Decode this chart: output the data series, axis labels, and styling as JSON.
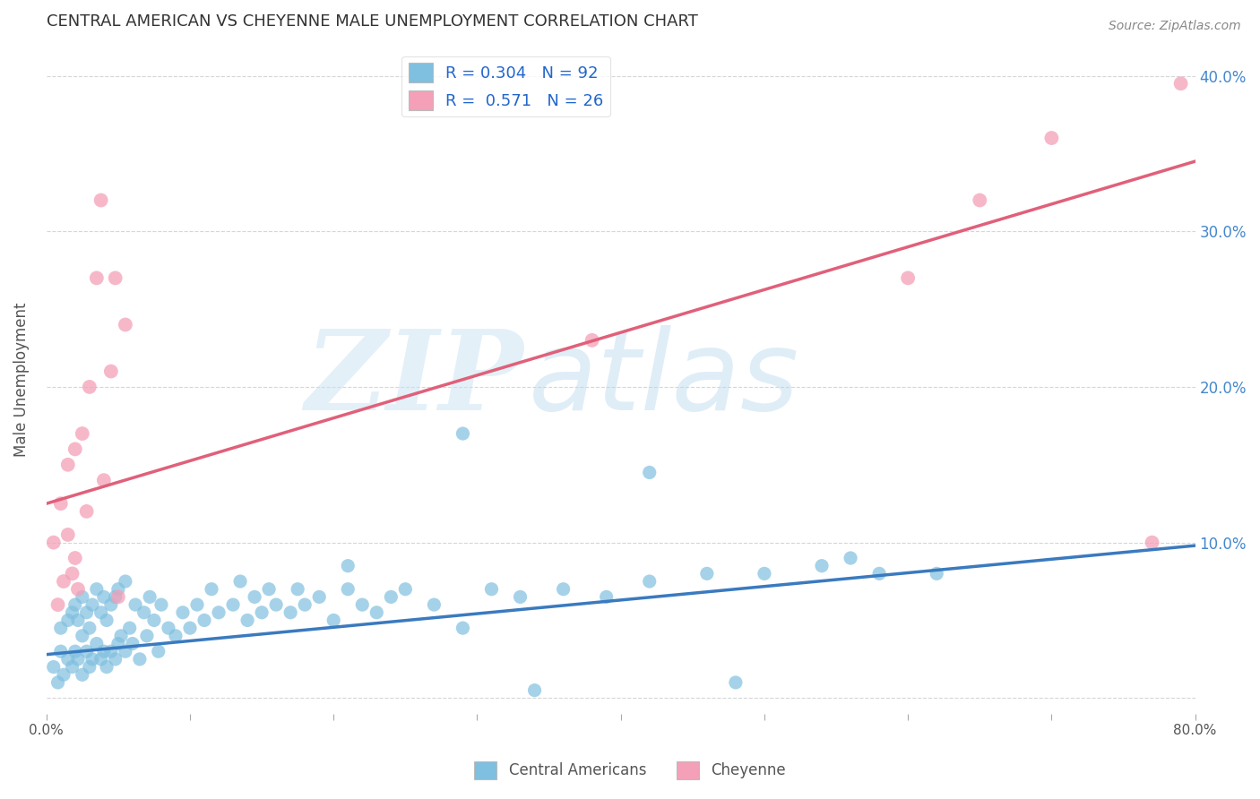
{
  "title": "CENTRAL AMERICAN VS CHEYENNE MALE UNEMPLOYMENT CORRELATION CHART",
  "source": "Source: ZipAtlas.com",
  "ylabel": "Male Unemployment",
  "xlim": [
    0,
    0.8
  ],
  "ylim": [
    -0.01,
    0.42
  ],
  "yticks": [
    0.0,
    0.1,
    0.2,
    0.3,
    0.4
  ],
  "xticks": [
    0.0,
    0.1,
    0.2,
    0.3,
    0.4,
    0.5,
    0.6,
    0.7,
    0.8
  ],
  "blue_R": 0.304,
  "blue_N": 92,
  "pink_R": 0.571,
  "pink_N": 26,
  "blue_color": "#7fbfdf",
  "pink_color": "#f4a0b8",
  "blue_line_color": "#3a7abf",
  "pink_line_color": "#e0607a",
  "watermark_zip": "ZIP",
  "watermark_atlas": "atlas",
  "legend_label_blue": "Central Americans",
  "legend_label_pink": "Cheyenne",
  "blue_scatter_x": [
    0.005,
    0.008,
    0.01,
    0.01,
    0.012,
    0.015,
    0.015,
    0.018,
    0.018,
    0.02,
    0.02,
    0.022,
    0.022,
    0.025,
    0.025,
    0.025,
    0.028,
    0.028,
    0.03,
    0.03,
    0.032,
    0.032,
    0.035,
    0.035,
    0.038,
    0.038,
    0.04,
    0.04,
    0.042,
    0.042,
    0.045,
    0.045,
    0.048,
    0.048,
    0.05,
    0.05,
    0.052,
    0.055,
    0.055,
    0.058,
    0.06,
    0.062,
    0.065,
    0.068,
    0.07,
    0.072,
    0.075,
    0.078,
    0.08,
    0.085,
    0.09,
    0.095,
    0.1,
    0.105,
    0.11,
    0.115,
    0.12,
    0.13,
    0.135,
    0.14,
    0.145,
    0.15,
    0.155,
    0.16,
    0.17,
    0.175,
    0.18,
    0.19,
    0.2,
    0.21,
    0.22,
    0.23,
    0.24,
    0.25,
    0.27,
    0.29,
    0.31,
    0.33,
    0.36,
    0.39,
    0.42,
    0.46,
    0.5,
    0.54,
    0.58,
    0.29,
    0.42,
    0.21,
    0.34,
    0.48,
    0.56,
    0.62
  ],
  "blue_scatter_y": [
    0.02,
    0.01,
    0.03,
    0.045,
    0.015,
    0.025,
    0.05,
    0.02,
    0.055,
    0.03,
    0.06,
    0.025,
    0.05,
    0.015,
    0.04,
    0.065,
    0.03,
    0.055,
    0.02,
    0.045,
    0.025,
    0.06,
    0.035,
    0.07,
    0.025,
    0.055,
    0.03,
    0.065,
    0.02,
    0.05,
    0.03,
    0.06,
    0.025,
    0.065,
    0.035,
    0.07,
    0.04,
    0.03,
    0.075,
    0.045,
    0.035,
    0.06,
    0.025,
    0.055,
    0.04,
    0.065,
    0.05,
    0.03,
    0.06,
    0.045,
    0.04,
    0.055,
    0.045,
    0.06,
    0.05,
    0.07,
    0.055,
    0.06,
    0.075,
    0.05,
    0.065,
    0.055,
    0.07,
    0.06,
    0.055,
    0.07,
    0.06,
    0.065,
    0.05,
    0.07,
    0.06,
    0.055,
    0.065,
    0.07,
    0.06,
    0.045,
    0.07,
    0.065,
    0.07,
    0.065,
    0.075,
    0.08,
    0.08,
    0.085,
    0.08,
    0.17,
    0.145,
    0.085,
    0.005,
    0.01,
    0.09,
    0.08
  ],
  "pink_scatter_x": [
    0.005,
    0.008,
    0.01,
    0.012,
    0.015,
    0.015,
    0.018,
    0.02,
    0.02,
    0.022,
    0.025,
    0.028,
    0.03,
    0.035,
    0.038,
    0.04,
    0.045,
    0.048,
    0.05,
    0.055,
    0.38,
    0.6,
    0.65,
    0.7,
    0.77,
    0.79
  ],
  "pink_scatter_y": [
    0.1,
    0.06,
    0.125,
    0.075,
    0.105,
    0.15,
    0.08,
    0.09,
    0.16,
    0.07,
    0.17,
    0.12,
    0.2,
    0.27,
    0.32,
    0.14,
    0.21,
    0.27,
    0.065,
    0.24,
    0.23,
    0.27,
    0.32,
    0.36,
    0.1,
    0.395
  ],
  "blue_line_x": [
    0.0,
    0.8
  ],
  "blue_line_y": [
    0.028,
    0.098
  ],
  "pink_line_x": [
    0.0,
    0.8
  ],
  "pink_line_y": [
    0.125,
    0.345
  ]
}
